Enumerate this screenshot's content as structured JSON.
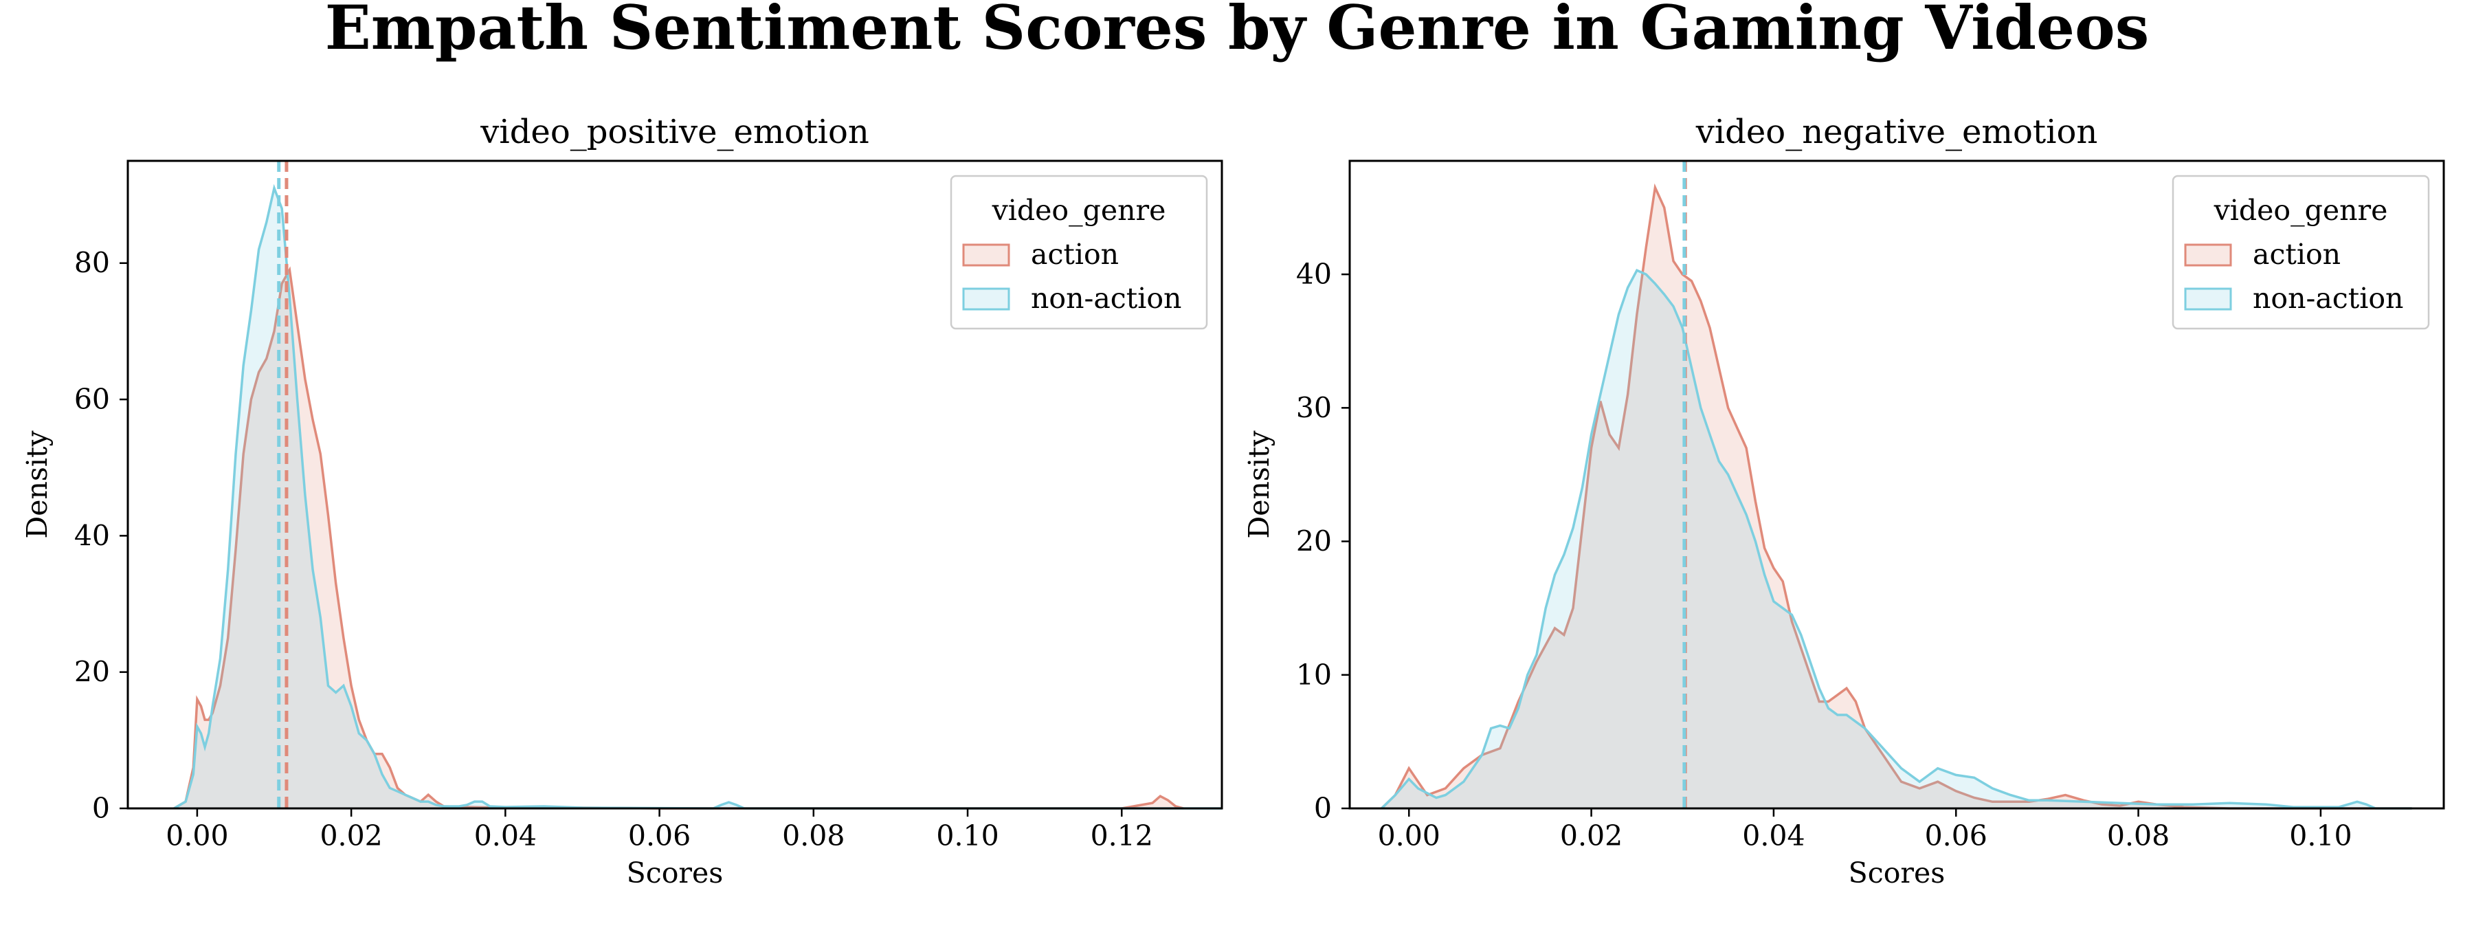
{
  "figure": {
    "title": "Empath Sentiment Scores by Genre in Gaming Videos"
  },
  "colors": {
    "action": "#e08a7a",
    "non_action": "#7dcfe0"
  },
  "chart_data": [
    {
      "type": "area",
      "title": "video_positive_emotion",
      "xlabel": "Scores",
      "ylabel": "Density",
      "xlim": [
        -0.009,
        0.133
      ],
      "ylim": [
        0,
        95
      ],
      "xticks": [
        0.0,
        0.02,
        0.04,
        0.06,
        0.08,
        0.1,
        0.12
      ],
      "xtick_labels": [
        "0.00",
        "0.02",
        "0.04",
        "0.06",
        "0.08",
        "0.10",
        "0.12"
      ],
      "yticks": [
        0,
        20,
        40,
        60,
        80
      ],
      "ytick_labels": [
        "0",
        "20",
        "40",
        "60",
        "80"
      ],
      "legend": {
        "title": "video_genre",
        "position": "top-right",
        "entries": [
          "action",
          "non-action"
        ]
      },
      "series": [
        {
          "name": "action",
          "color": "#e08a7a",
          "mean_line": 0.0116,
          "points": [
            [
              -0.003,
              0
            ],
            [
              -0.0015,
              1
            ],
            [
              -0.0005,
              6
            ],
            [
              0,
              16
            ],
            [
              0.0005,
              15
            ],
            [
              0.001,
              13
            ],
            [
              0.0015,
              13
            ],
            [
              0.002,
              14
            ],
            [
              0.003,
              18
            ],
            [
              0.004,
              25
            ],
            [
              0.005,
              38
            ],
            [
              0.006,
              52
            ],
            [
              0.007,
              60
            ],
            [
              0.008,
              64
            ],
            [
              0.009,
              66
            ],
            [
              0.01,
              70
            ],
            [
              0.011,
              77
            ],
            [
              0.012,
              79
            ],
            [
              0.013,
              71
            ],
            [
              0.014,
              63
            ],
            [
              0.015,
              57
            ],
            [
              0.016,
              52
            ],
            [
              0.017,
              43
            ],
            [
              0.018,
              33
            ],
            [
              0.019,
              25
            ],
            [
              0.02,
              18
            ],
            [
              0.021,
              13
            ],
            [
              0.022,
              10
            ],
            [
              0.023,
              8
            ],
            [
              0.024,
              8
            ],
            [
              0.025,
              6
            ],
            [
              0.026,
              3
            ],
            [
              0.027,
              2
            ],
            [
              0.028,
              1.5
            ],
            [
              0.029,
              1
            ],
            [
              0.03,
              2
            ],
            [
              0.031,
              1
            ],
            [
              0.032,
              0.3
            ],
            [
              0.035,
              0.2
            ],
            [
              0.04,
              0.1
            ],
            [
              0.05,
              0.1
            ],
            [
              0.06,
              0
            ],
            [
              0.12,
              0
            ],
            [
              0.124,
              0.8
            ],
            [
              0.125,
              1.8
            ],
            [
              0.126,
              1.2
            ],
            [
              0.127,
              0.3
            ],
            [
              0.128,
              0
            ]
          ]
        },
        {
          "name": "non-action",
          "color": "#7dcfe0",
          "mean_line": 0.0106,
          "points": [
            [
              -0.003,
              0
            ],
            [
              -0.0015,
              1
            ],
            [
              -0.0005,
              5
            ],
            [
              0,
              12
            ],
            [
              0.0005,
              11
            ],
            [
              0.001,
              9
            ],
            [
              0.0015,
              11
            ],
            [
              0.002,
              15
            ],
            [
              0.003,
              22
            ],
            [
              0.004,
              35
            ],
            [
              0.005,
              52
            ],
            [
              0.006,
              65
            ],
            [
              0.007,
              73
            ],
            [
              0.008,
              82
            ],
            [
              0.009,
              86
            ],
            [
              0.01,
              91
            ],
            [
              0.011,
              88
            ],
            [
              0.012,
              75
            ],
            [
              0.013,
              60
            ],
            [
              0.014,
              46
            ],
            [
              0.015,
              35
            ],
            [
              0.016,
              28
            ],
            [
              0.017,
              18
            ],
            [
              0.018,
              17
            ],
            [
              0.019,
              18
            ],
            [
              0.02,
              15
            ],
            [
              0.021,
              11
            ],
            [
              0.022,
              10
            ],
            [
              0.023,
              8
            ],
            [
              0.024,
              5
            ],
            [
              0.025,
              3
            ],
            [
              0.026,
              2.5
            ],
            [
              0.027,
              2
            ],
            [
              0.028,
              1.5
            ],
            [
              0.029,
              1
            ],
            [
              0.03,
              1
            ],
            [
              0.031,
              0.5
            ],
            [
              0.032,
              0.3
            ],
            [
              0.034,
              0.3
            ],
            [
              0.035,
              0.5
            ],
            [
              0.036,
              1
            ],
            [
              0.037,
              1
            ],
            [
              0.038,
              0.3
            ],
            [
              0.04,
              0.2
            ],
            [
              0.045,
              0.3
            ],
            [
              0.05,
              0.1
            ],
            [
              0.067,
              0
            ],
            [
              0.068,
              0.5
            ],
            [
              0.069,
              0.9
            ],
            [
              0.07,
              0.5
            ],
            [
              0.071,
              0
            ],
            [
              0.133,
              0
            ]
          ]
        }
      ]
    },
    {
      "type": "area",
      "title": "video_negative_emotion",
      "xlabel": "Scores",
      "ylabel": "Density",
      "xlim": [
        -0.0065,
        0.1135
      ],
      "ylim": [
        0,
        48.5
      ],
      "xticks": [
        0.0,
        0.02,
        0.04,
        0.06,
        0.08,
        0.1
      ],
      "xtick_labels": [
        "0.00",
        "0.02",
        "0.04",
        "0.06",
        "0.08",
        "0.10"
      ],
      "yticks": [
        0,
        10,
        20,
        30,
        40
      ],
      "ytick_labels": [
        "0",
        "10",
        "20",
        "30",
        "40"
      ],
      "legend": {
        "title": "video_genre",
        "position": "top-right",
        "entries": [
          "action",
          "non-action"
        ]
      },
      "series": [
        {
          "name": "action",
          "color": "#e08a7a",
          "mean_line": 0.0303,
          "points": [
            [
              -0.003,
              0
            ],
            [
              -0.0015,
              1
            ],
            [
              0,
              3
            ],
            [
              0.001,
              2
            ],
            [
              0.002,
              1
            ],
            [
              0.004,
              1.5
            ],
            [
              0.006,
              3
            ],
            [
              0.008,
              4
            ],
            [
              0.01,
              4.5
            ],
            [
              0.012,
              8
            ],
            [
              0.014,
              11
            ],
            [
              0.016,
              13.5
            ],
            [
              0.017,
              13
            ],
            [
              0.018,
              15
            ],
            [
              0.019,
              21
            ],
            [
              0.02,
              27
            ],
            [
              0.021,
              30.5
            ],
            [
              0.022,
              28
            ],
            [
              0.023,
              27
            ],
            [
              0.024,
              31
            ],
            [
              0.025,
              37
            ],
            [
              0.026,
              42
            ],
            [
              0.027,
              46.5
            ],
            [
              0.028,
              45
            ],
            [
              0.029,
              41
            ],
            [
              0.03,
              40
            ],
            [
              0.031,
              39.5
            ],
            [
              0.032,
              38
            ],
            [
              0.033,
              36
            ],
            [
              0.034,
              33
            ],
            [
              0.035,
              30
            ],
            [
              0.036,
              28.5
            ],
            [
              0.037,
              27
            ],
            [
              0.038,
              23
            ],
            [
              0.039,
              19.5
            ],
            [
              0.04,
              18
            ],
            [
              0.041,
              17
            ],
            [
              0.042,
              14
            ],
            [
              0.043,
              12
            ],
            [
              0.044,
              10
            ],
            [
              0.045,
              8
            ],
            [
              0.046,
              8
            ],
            [
              0.047,
              8.5
            ],
            [
              0.048,
              9
            ],
            [
              0.049,
              8
            ],
            [
              0.05,
              6
            ],
            [
              0.052,
              4
            ],
            [
              0.054,
              2
            ],
            [
              0.056,
              1.5
            ],
            [
              0.058,
              2
            ],
            [
              0.06,
              1.3
            ],
            [
              0.062,
              0.8
            ],
            [
              0.064,
              0.5
            ],
            [
              0.066,
              0.5
            ],
            [
              0.068,
              0.5
            ],
            [
              0.07,
              0.7
            ],
            [
              0.072,
              1
            ],
            [
              0.074,
              0.6
            ],
            [
              0.076,
              0.3
            ],
            [
              0.078,
              0.2
            ],
            [
              0.08,
              0.5
            ],
            [
              0.082,
              0.3
            ],
            [
              0.085,
              0.1
            ],
            [
              0.09,
              0
            ],
            [
              0.11,
              0
            ]
          ]
        },
        {
          "name": "non-action",
          "color": "#7dcfe0",
          "mean_line": 0.0302,
          "points": [
            [
              -0.003,
              0
            ],
            [
              -0.0015,
              1
            ],
            [
              0,
              2.2
            ],
            [
              0.001,
              1.5
            ],
            [
              0.003,
              0.8
            ],
            [
              0.004,
              1
            ],
            [
              0.006,
              2
            ],
            [
              0.008,
              4
            ],
            [
              0.009,
              6
            ],
            [
              0.01,
              6.2
            ],
            [
              0.011,
              6
            ],
            [
              0.012,
              7.5
            ],
            [
              0.013,
              10
            ],
            [
              0.014,
              11.5
            ],
            [
              0.015,
              15
            ],
            [
              0.016,
              17.5
            ],
            [
              0.017,
              19
            ],
            [
              0.018,
              21
            ],
            [
              0.019,
              24
            ],
            [
              0.02,
              28
            ],
            [
              0.021,
              31
            ],
            [
              0.022,
              34
            ],
            [
              0.023,
              37
            ],
            [
              0.024,
              39
            ],
            [
              0.025,
              40.3
            ],
            [
              0.026,
              40
            ],
            [
              0.027,
              39.3
            ],
            [
              0.028,
              38.5
            ],
            [
              0.029,
              37.6
            ],
            [
              0.03,
              36
            ],
            [
              0.031,
              33
            ],
            [
              0.032,
              30
            ],
            [
              0.033,
              28
            ],
            [
              0.034,
              26
            ],
            [
              0.035,
              25
            ],
            [
              0.036,
              23.5
            ],
            [
              0.037,
              22
            ],
            [
              0.038,
              20
            ],
            [
              0.039,
              17.5
            ],
            [
              0.04,
              15.5
            ],
            [
              0.041,
              15
            ],
            [
              0.042,
              14.5
            ],
            [
              0.043,
              13
            ],
            [
              0.044,
              11
            ],
            [
              0.045,
              9
            ],
            [
              0.046,
              7.5
            ],
            [
              0.047,
              7
            ],
            [
              0.048,
              7
            ],
            [
              0.049,
              6.5
            ],
            [
              0.05,
              6
            ],
            [
              0.052,
              4.5
            ],
            [
              0.054,
              3
            ],
            [
              0.056,
              2
            ],
            [
              0.058,
              3
            ],
            [
              0.06,
              2.5
            ],
            [
              0.062,
              2.3
            ],
            [
              0.064,
              1.5
            ],
            [
              0.066,
              1
            ],
            [
              0.068,
              0.6
            ],
            [
              0.07,
              0.6
            ],
            [
              0.074,
              0.5
            ],
            [
              0.078,
              0.4
            ],
            [
              0.082,
              0.3
            ],
            [
              0.086,
              0.3
            ],
            [
              0.09,
              0.4
            ],
            [
              0.094,
              0.3
            ],
            [
              0.097,
              0.1
            ],
            [
              0.1,
              0.1
            ],
            [
              0.102,
              0.1
            ],
            [
              0.104,
              0.5
            ],
            [
              0.105,
              0.3
            ],
            [
              0.106,
              0
            ],
            [
              0.11,
              0
            ]
          ]
        }
      ]
    }
  ]
}
